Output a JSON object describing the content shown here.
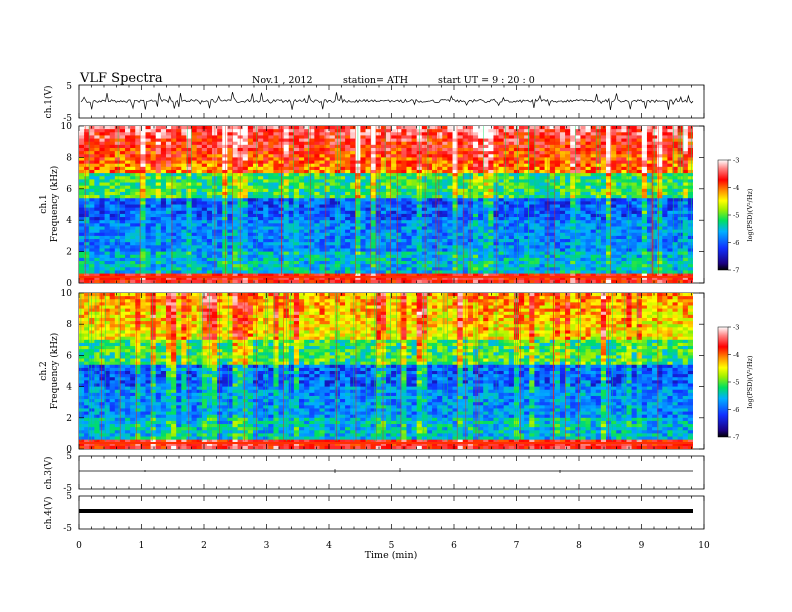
{
  "header": {
    "title": "VLF  Spectra",
    "date": "Nov.1  , 2012",
    "station": "station= ATH",
    "start": "start  UT  =   9  : 20 : 0"
  },
  "chart_data": [
    {
      "type": "line",
      "panel": "ch1-waveform",
      "ylabel": "ch.1(V)",
      "ylim": [
        -5,
        5
      ],
      "yticks": [
        "5",
        "-5"
      ],
      "xlim": [
        0,
        10
      ],
      "description_values": {
        "baseline": 0,
        "spike_min": -3.5,
        "spike_max": 3.5
      }
    },
    {
      "type": "heatmap",
      "panel": "ch1-spectrogram",
      "ylabel": "ch.1\nFrequency  (kHz)",
      "ylim": [
        0,
        10
      ],
      "yticks": [
        "0",
        "2",
        "4",
        "6",
        "8",
        "10"
      ],
      "xlim": [
        0,
        9.8
      ],
      "colorbar": {
        "label": "log(PSD)(V²/Hz)",
        "range": [
          -7,
          -3
        ],
        "ticks": [
          "-3",
          "-4",
          "-5",
          "-6",
          "-7"
        ]
      }
    },
    {
      "type": "heatmap",
      "panel": "ch2-spectrogram",
      "ylabel": "ch.2\nFrequency  (kHz)",
      "ylim": [
        0,
        10
      ],
      "yticks": [
        "0",
        "2",
        "4",
        "6",
        "8",
        "10"
      ],
      "xlim": [
        0,
        9.8
      ],
      "colorbar": {
        "label": "log(PSD)(V²/Hz)",
        "range": [
          -7,
          -3
        ],
        "ticks": [
          "-3",
          "-4",
          "-5",
          "-6",
          "-7"
        ]
      }
    },
    {
      "type": "line",
      "panel": "ch3-waveform",
      "ylabel": "ch.3(V)",
      "ylim": [
        -5,
        5
      ],
      "yticks": [
        "5",
        "-5"
      ],
      "xlim": [
        0,
        10
      ]
    },
    {
      "type": "line",
      "panel": "ch4-waveform",
      "ylabel": "ch.4(V)",
      "ylim": [
        -5,
        5
      ],
      "yticks": [
        "5",
        "-5"
      ],
      "xlim": [
        0,
        10
      ]
    }
  ],
  "xaxis": {
    "label": "Time  (min)",
    "ticks": [
      "0",
      "1",
      "2",
      "3",
      "4",
      "5",
      "6",
      "7",
      "8",
      "9",
      "10"
    ]
  }
}
